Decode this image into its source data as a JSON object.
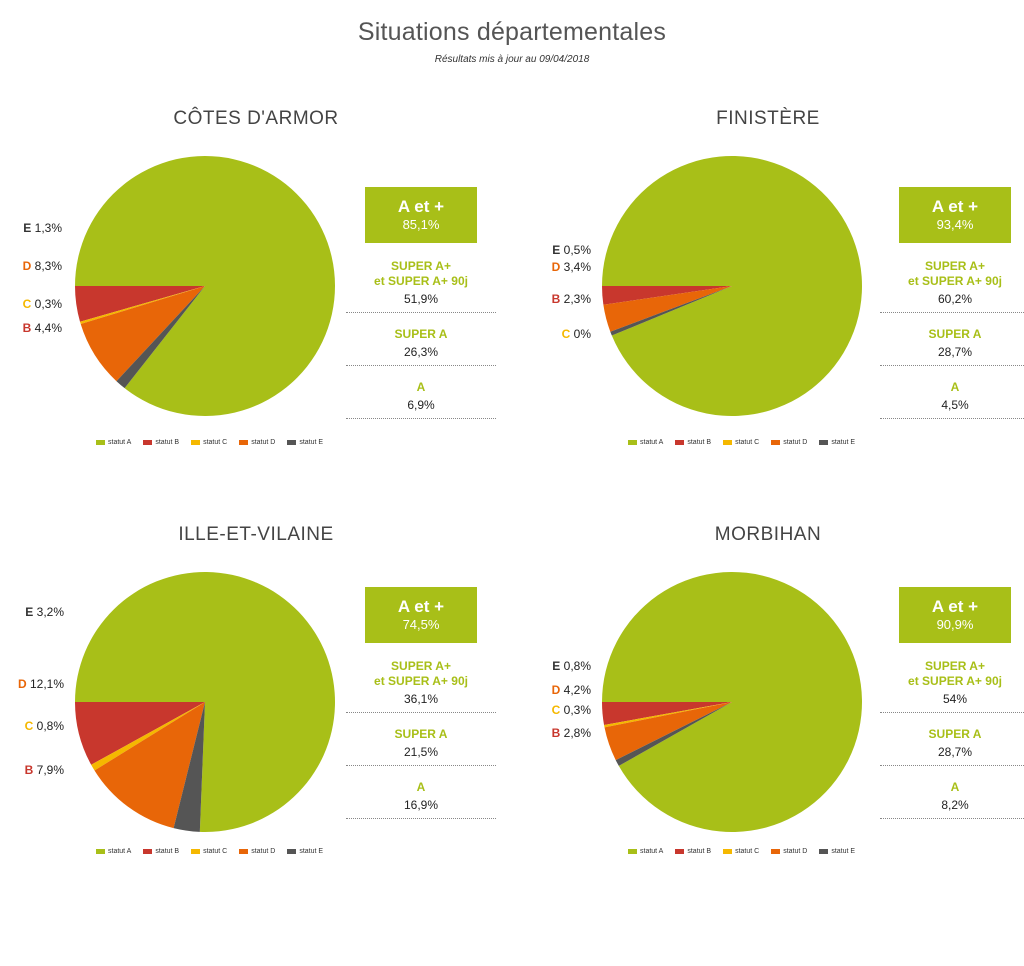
{
  "title": "Situations départementales",
  "subtitle": "Résultats mis à jour au 09/04/2018",
  "colors": {
    "statut A": "#a8bf18",
    "statut B": "#c8372d",
    "statut C": "#f5b800",
    "statut D": "#e86608",
    "statut E": "#555555"
  },
  "legend": [
    "statut A",
    "statut B",
    "statut C",
    "statut D",
    "statut E"
  ],
  "chart_data": [
    {
      "type": "pie",
      "title": "CÔTES D'ARMOR",
      "categories": [
        "statut A",
        "statut B",
        "statut C",
        "statut D",
        "statut E"
      ],
      "values": [
        85.1,
        4.4,
        0.3,
        8.3,
        1.3
      ],
      "labels": [
        {
          "letter": "",
          "text": ""
        },
        {
          "letter": "B",
          "text": "4,4%"
        },
        {
          "letter": "C",
          "text": "0,3%"
        },
        {
          "letter": "D",
          "text": "8,3%"
        },
        {
          "letter": "E",
          "text": "1,3%"
        }
      ],
      "stats": {
        "box_label": "A et +",
        "box_value": "85,1%",
        "items": [
          {
            "label": "SUPER A+\net SUPER A+ 90j",
            "value": "51,9%"
          },
          {
            "label": "SUPER A",
            "value": "26,3%"
          },
          {
            "label": "A",
            "value": "6,9%"
          }
        ]
      }
    },
    {
      "type": "pie",
      "title": "FINISTÈRE",
      "categories": [
        "statut A",
        "statut B",
        "statut C",
        "statut D",
        "statut E"
      ],
      "values": [
        93.4,
        2.3,
        0,
        3.4,
        0.5
      ],
      "labels": [
        {
          "letter": "",
          "text": ""
        },
        {
          "letter": "B",
          "text": "2,3%"
        },
        {
          "letter": "C",
          "text": "0%"
        },
        {
          "letter": "D",
          "text": "3,4%"
        },
        {
          "letter": "E",
          "text": "0,5%"
        }
      ],
      "stats": {
        "box_label": "A et +",
        "box_value": "93,4%",
        "items": [
          {
            "label": "SUPER A+\net SUPER A+ 90j",
            "value": "60,2%"
          },
          {
            "label": "SUPER A",
            "value": "28,7%"
          },
          {
            "label": "A",
            "value": "4,5%"
          }
        ]
      }
    },
    {
      "type": "pie",
      "title": "ILLE-ET-VILAINE",
      "categories": [
        "statut A",
        "statut B",
        "statut C",
        "statut D",
        "statut E"
      ],
      "values": [
        74.5,
        7.9,
        0.8,
        12.1,
        3.2
      ],
      "labels": [
        {
          "letter": "",
          "text": ""
        },
        {
          "letter": "B",
          "text": "7,9%"
        },
        {
          "letter": "C",
          "text": "0,8%"
        },
        {
          "letter": "D",
          "text": "12,1%"
        },
        {
          "letter": "E",
          "text": "3,2%"
        }
      ],
      "stats": {
        "box_label": "A et +",
        "box_value": "74,5%",
        "items": [
          {
            "label": "SUPER A+\net SUPER A+ 90j",
            "value": "36,1%"
          },
          {
            "label": "SUPER A",
            "value": "21,5%"
          },
          {
            "label": "A",
            "value": "16,9%"
          }
        ]
      }
    },
    {
      "type": "pie",
      "title": "MORBIHAN",
      "categories": [
        "statut A",
        "statut B",
        "statut C",
        "statut D",
        "statut E"
      ],
      "values": [
        90.9,
        2.8,
        0.3,
        4.2,
        0.8
      ],
      "labels": [
        {
          "letter": "",
          "text": ""
        },
        {
          "letter": "B",
          "text": "2,8%"
        },
        {
          "letter": "C",
          "text": "0,3%"
        },
        {
          "letter": "D",
          "text": "4,2%"
        },
        {
          "letter": "E",
          "text": "0,8%"
        }
      ],
      "stats": {
        "box_label": "A et +",
        "box_value": "90,9%",
        "items": [
          {
            "label": "SUPER A+\net SUPER A+ 90j",
            "value": "54%"
          },
          {
            "label": "SUPER A",
            "value": "28,7%"
          },
          {
            "label": "A",
            "value": "8,2%"
          }
        ]
      }
    }
  ]
}
